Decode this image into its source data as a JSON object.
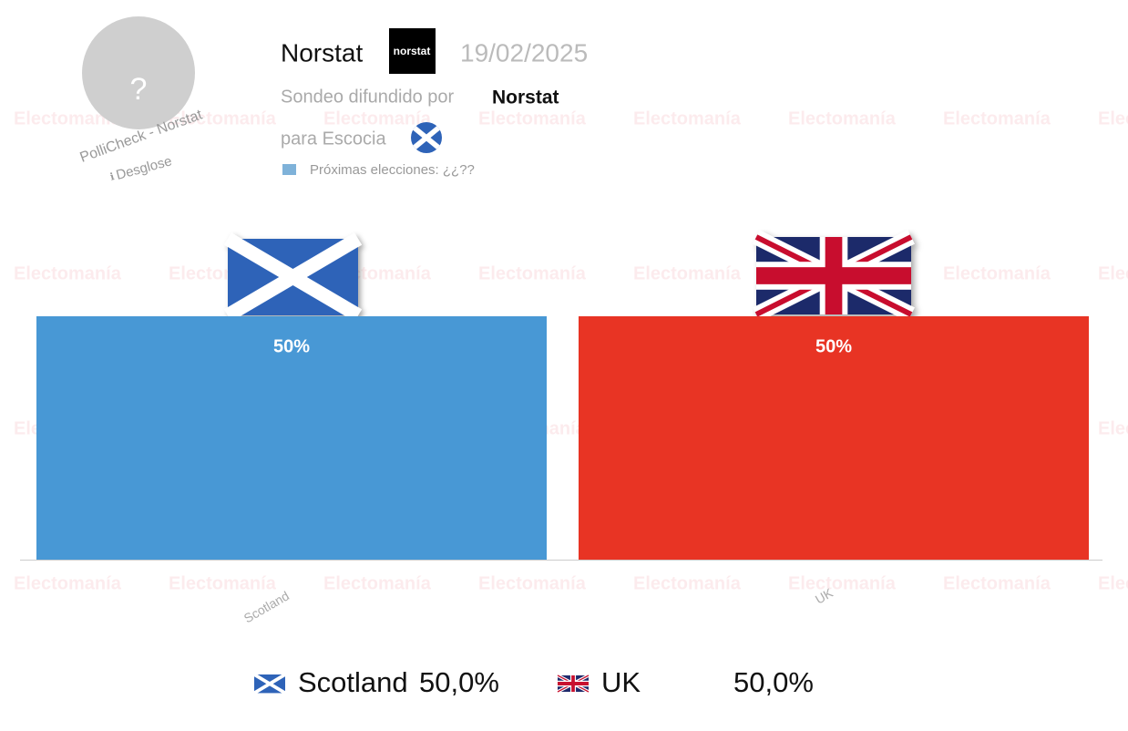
{
  "watermark": "Electomanía",
  "header": {
    "avatar": "?",
    "source_tag": "PolliCheck - Norstat",
    "info_icon": "ℹ",
    "breakdown": "Desglose",
    "pollster": "Norstat",
    "logo": "norstat",
    "date": "19/02/2025",
    "published_by": "Sondeo difundido por",
    "publisher": "Norstat",
    "region": "para Escocia",
    "next_election": "Próximas elecciones: ¿¿??"
  },
  "chart_data": {
    "type": "bar",
    "categories": [
      "Scotland",
      "UK"
    ],
    "values": [
      50,
      50
    ],
    "value_labels": [
      "50%",
      "50%"
    ],
    "colors": [
      "#4898d5",
      "#e83424"
    ],
    "legend_labels": [
      "50,0%",
      "50,0%"
    ]
  }
}
